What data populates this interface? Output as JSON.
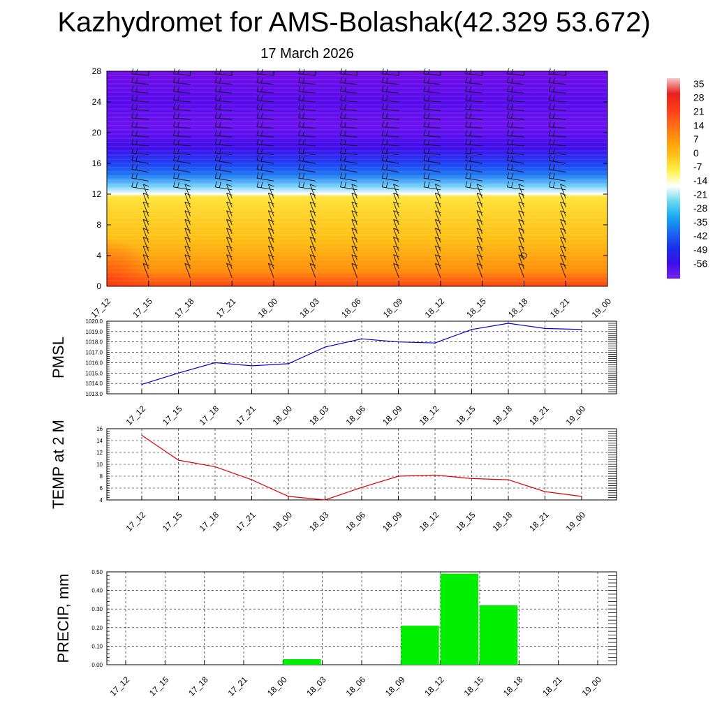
{
  "title": "Kazhydromet for AMS-Bolashak(42.329 53.672)",
  "subtitle": "17 March 2026",
  "chart_data": [
    {
      "type": "heatmap",
      "name": "temperature-height-section",
      "x": [
        "17_12",
        "17_15",
        "17_18",
        "17_21",
        "18_00",
        "18_03",
        "18_06",
        "18_09",
        "18_12",
        "18_15",
        "18_18",
        "18_21",
        "19_00"
      ],
      "ylim": [
        0,
        28
      ],
      "yticks": [
        0,
        4,
        8,
        12,
        16,
        20,
        24,
        28
      ],
      "colorbar_labels": [
        "35",
        "28",
        "21",
        "14",
        "7",
        "0",
        "-7",
        "-14",
        "-21",
        "-28",
        "-35",
        "-42",
        "-49",
        "-56"
      ],
      "colorbar_colors": [
        "#f4c6c6",
        "#e82020",
        "#ff3a1a",
        "#ff6a1a",
        "#ff9a0a",
        "#ffc21a",
        "#fff24a",
        "#ffffff",
        "#6ad8f0",
        "#1aa8f0",
        "#1a6af0",
        "#1a30e8",
        "#3a10e8",
        "#7a20f0"
      ],
      "profile": [
        {
          "h": 0,
          "t": 18
        },
        {
          "h": 2,
          "t": 10
        },
        {
          "h": 6,
          "t": 4
        },
        {
          "h": 10.5,
          "t": -1
        },
        {
          "h": 11.7,
          "t": -3
        },
        {
          "h": 12,
          "t": -12
        },
        {
          "h": 13,
          "t": -18
        },
        {
          "h": 14.5,
          "t": -30
        },
        {
          "h": 16,
          "t": -36
        },
        {
          "h": 18,
          "t": -46
        },
        {
          "h": 21,
          "t": -54
        },
        {
          "h": 24,
          "t": -50
        },
        {
          "h": 28,
          "t": -58
        }
      ]
    },
    {
      "type": "line",
      "name": "pmsl",
      "ylabel": "PMSL",
      "categories": [
        "17_12",
        "17_15",
        "17_18",
        "17_21",
        "18_00",
        "18_03",
        "18_06",
        "18_09",
        "18_12",
        "18_15",
        "18_18",
        "18_21",
        "19_00"
      ],
      "values": [
        1013.9,
        1015.0,
        1016.0,
        1015.7,
        1015.9,
        1017.5,
        1018.3,
        1018.0,
        1017.9,
        1019.2,
        1019.8,
        1019.3,
        1019.2
      ],
      "ylim": [
        1013.0,
        1020.0
      ],
      "yticks": [
        "1013.0",
        "1014.0",
        "1015.0",
        "1016.0",
        "1017.0",
        "1018.0",
        "1019.0",
        "1020.0"
      ],
      "color": "#0000cc"
    },
    {
      "type": "line",
      "name": "temp-2m",
      "ylabel": "TEMP at 2 M",
      "categories": [
        "17_12",
        "17_15",
        "17_18",
        "17_21",
        "18_00",
        "18_03",
        "18_06",
        "18_09",
        "18_12",
        "18_15",
        "18_18",
        "18_21",
        "19_00"
      ],
      "values": [
        14.9,
        10.7,
        9.6,
        7.4,
        4.6,
        4.0,
        6.1,
        8.0,
        8.2,
        7.6,
        7.4,
        5.4,
        4.6
      ],
      "ylim": [
        4,
        16
      ],
      "yticks": [
        "4",
        "6",
        "8",
        "10",
        "12",
        "14",
        "16"
      ],
      "color": "#dd0000"
    },
    {
      "type": "bar",
      "name": "precip",
      "ylabel": "PRECIP, mm",
      "categories": [
        "17_12",
        "17_15",
        "17_18",
        "17_21",
        "18_00",
        "18_03",
        "18_06",
        "18_09",
        "18_12",
        "18_15",
        "18_18",
        "18_21",
        "19_00"
      ],
      "values": [
        0,
        0,
        0,
        0,
        0.03,
        0,
        0,
        0.21,
        0.49,
        0.32,
        0,
        0,
        0
      ],
      "ylim": [
        0,
        0.5
      ],
      "yticks": [
        "0.00",
        "0.10",
        "0.20",
        "0.30",
        "0.40",
        "0.50"
      ],
      "color": "#00ee00"
    }
  ]
}
